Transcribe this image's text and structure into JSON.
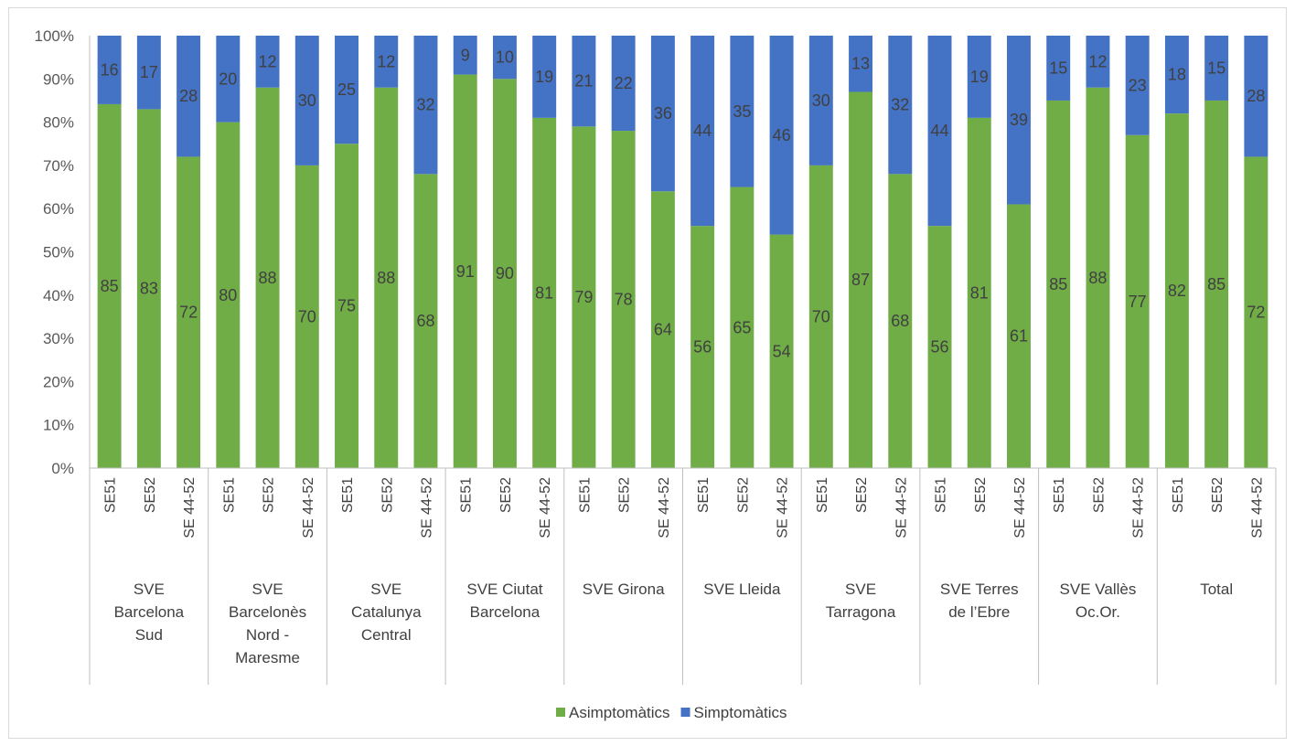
{
  "chart_data": {
    "type": "bar",
    "stacked": true,
    "percent": true,
    "title": "",
    "xlabel": "",
    "ylabel": "",
    "ylim": [
      0,
      100
    ],
    "y_ticks": [
      "0%",
      "10%",
      "20%",
      "30%",
      "40%",
      "50%",
      "60%",
      "70%",
      "80%",
      "90%",
      "100%"
    ],
    "grid": false,
    "legend_position": "bottom",
    "groups": [
      {
        "label_lines": [
          "SVE",
          "Barcelona",
          "Sud"
        ],
        "categories": [
          "SE51",
          "SE52",
          "SE 44-52"
        ]
      },
      {
        "label_lines": [
          "SVE",
          "Barcelonès",
          "Nord -",
          "Maresme"
        ],
        "categories": [
          "SE51",
          "SE52",
          "SE 44-52"
        ]
      },
      {
        "label_lines": [
          "SVE",
          "Catalunya",
          "Central"
        ],
        "categories": [
          "SE51",
          "SE52",
          "SE 44-52"
        ]
      },
      {
        "label_lines": [
          "SVE Ciutat",
          "Barcelona"
        ],
        "categories": [
          "SE51",
          "SE52",
          "SE 44-52"
        ]
      },
      {
        "label_lines": [
          "SVE Girona"
        ],
        "categories": [
          "SE51",
          "SE52",
          "SE 44-52"
        ]
      },
      {
        "label_lines": [
          "SVE Lleida"
        ],
        "categories": [
          "SE51",
          "SE52",
          "SE 44-52"
        ]
      },
      {
        "label_lines": [
          "SVE",
          "Tarragona"
        ],
        "categories": [
          "SE51",
          "SE52",
          "SE 44-52"
        ]
      },
      {
        "label_lines": [
          "SVE Terres",
          "de l’Ebre"
        ],
        "categories": [
          "SE51",
          "SE52",
          "SE 44-52"
        ]
      },
      {
        "label_lines": [
          "SVE Vallès",
          "Oc.Or."
        ],
        "categories": [
          "SE51",
          "SE52",
          "SE 44-52"
        ]
      },
      {
        "label_lines": [
          "Total"
        ],
        "categories": [
          "SE51",
          "SE52",
          "SE 44-52"
        ]
      }
    ],
    "series": [
      {
        "name": "Asimptomàtics",
        "color": "#70ad47",
        "values": [
          85,
          83,
          72,
          80,
          88,
          70,
          75,
          88,
          68,
          91,
          90,
          81,
          79,
          78,
          64,
          56,
          65,
          54,
          70,
          87,
          68,
          56,
          81,
          61,
          85,
          88,
          77,
          82,
          85,
          72
        ]
      },
      {
        "name": "Simptomàtics",
        "color": "#4472c4",
        "values": [
          16,
          17,
          28,
          20,
          12,
          30,
          25,
          12,
          32,
          9,
          10,
          19,
          21,
          22,
          36,
          44,
          35,
          46,
          30,
          13,
          32,
          44,
          19,
          39,
          15,
          12,
          23,
          18,
          15,
          28
        ]
      }
    ]
  }
}
